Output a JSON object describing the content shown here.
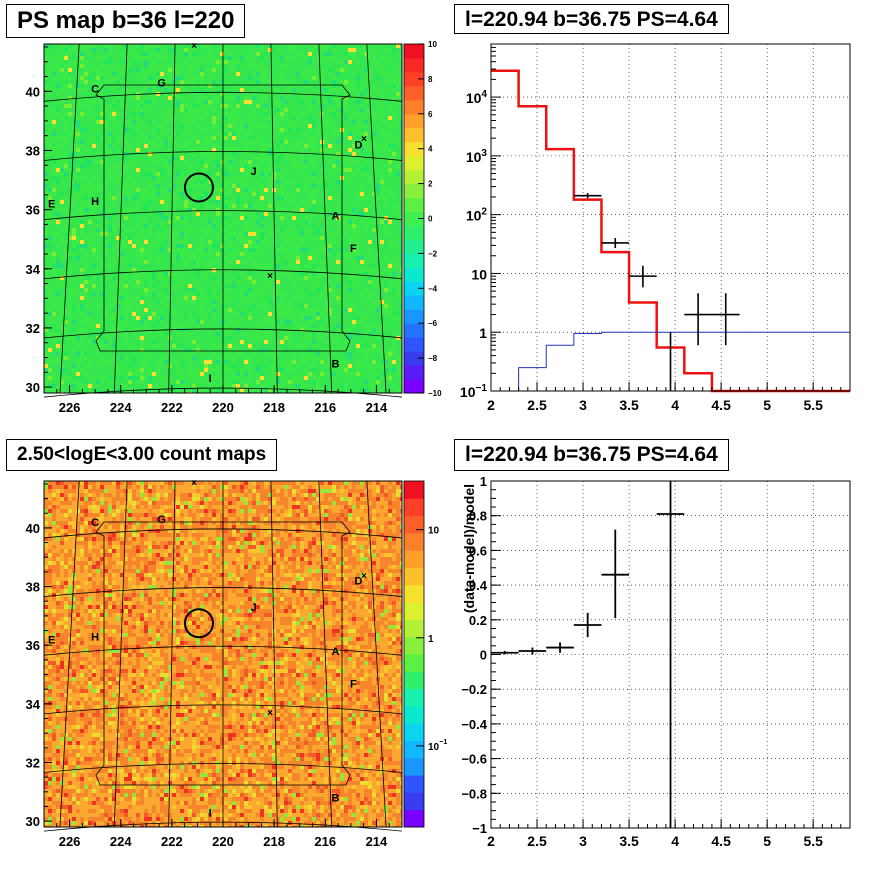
{
  "panels": {
    "tl_title": "PS map b=36 l=220",
    "tr_title": "l=220.94 b=36.75 PS=4.64",
    "bl_title": "2.50<logE<3.00 count maps",
    "br_title": "l=220.94 b=36.75 PS=4.64"
  },
  "colors": {
    "map_top_bg": "#33ee44",
    "map_bottom_bg": "#ee9933",
    "model_line": "#ee1111",
    "bg_line": "#2233bb",
    "data_marker": "#000000"
  },
  "chart_data": [
    {
      "type": "heatmap",
      "name": "ps-map",
      "xlabel": "",
      "ylabel": "",
      "xlim": [
        227,
        213
      ],
      "ylim": [
        29.8,
        41.6
      ],
      "xticks": [
        "226",
        "224",
        "222",
        "220",
        "218",
        "216",
        "214"
      ],
      "yticks": [
        "30",
        "32",
        "34",
        "36",
        "38",
        "40"
      ],
      "colorbar": {
        "scale": "linear",
        "min": -10,
        "max": 10,
        "ticks": [
          "10",
          "8",
          "6",
          "4",
          "2",
          "0",
          "−2",
          "−4",
          "−6",
          "−8",
          "−10"
        ]
      },
      "source_labels": [
        {
          "text": "C",
          "l": 225.0,
          "b": 40.1
        },
        {
          "text": "G",
          "l": 222.4,
          "b": 40.3
        },
        {
          "text": "D",
          "l": 214.7,
          "b": 38.2
        },
        {
          "text": "J",
          "l": 218.8,
          "b": 37.3
        },
        {
          "text": "E",
          "l": 226.7,
          "b": 36.2
        },
        {
          "text": "H",
          "l": 225.0,
          "b": 36.3
        },
        {
          "text": "A",
          "l": 215.6,
          "b": 35.8
        },
        {
          "text": "F",
          "l": 214.9,
          "b": 34.7
        },
        {
          "text": "B",
          "l": 215.6,
          "b": 30.8
        },
        {
          "text": "I",
          "l": 220.5,
          "b": 30.3
        }
      ],
      "circle_center": {
        "l": 220.94,
        "b": 36.75
      }
    },
    {
      "type": "line",
      "name": "spectrum",
      "title": "l=220.94 b=36.75 PS=4.64",
      "xlabel": "",
      "ylabel": "",
      "yscale": "log",
      "xlim": [
        2,
        5.9
      ],
      "ylim": [
        0.1,
        80000
      ],
      "xticks": [
        "2",
        "2.5",
        "3",
        "3.5",
        "4",
        "4.5",
        "5",
        "5.5"
      ],
      "yticks": [
        {
          "v": 0.1,
          "base": "10",
          "exp": "−1"
        },
        {
          "v": 1,
          "base": "1",
          "exp": ""
        },
        {
          "v": 10,
          "base": "10",
          "exp": ""
        },
        {
          "v": 100,
          "base": "10",
          "exp": "2"
        },
        {
          "v": 1000,
          "base": "10",
          "exp": "3"
        },
        {
          "v": 10000,
          "base": "10",
          "exp": "4"
        }
      ],
      "grid": true,
      "bin_edges": [
        2.0,
        2.3,
        2.6,
        2.9,
        3.2,
        3.5,
        3.8,
        4.1,
        4.4,
        4.7,
        5.0,
        5.3,
        5.6,
        5.9
      ],
      "series": [
        {
          "values": [
            28000,
            7000,
            1300,
            180,
            23,
            3.2,
            0.55,
            0.2,
            0.1,
            0.1,
            0.1,
            0.1,
            0.1
          ]
        },
        {
          "values": [
            0.05,
            0.25,
            0.6,
            0.95,
            1.0,
            1.0,
            1.0,
            1.0,
            1.0,
            1.0,
            1.0,
            1.0,
            1.0
          ]
        }
      ],
      "points": [
        {
          "x": 3.05,
          "y": 210,
          "xerr": 0.15,
          "lo": 190,
          "hi": 232
        },
        {
          "x": 3.35,
          "y": 33,
          "xerr": 0.15,
          "lo": 27,
          "hi": 40
        },
        {
          "x": 3.65,
          "y": 9,
          "xerr": 0.15,
          "lo": 5.8,
          "hi": 13.5
        },
        {
          "x": 3.95,
          "y": 0.1,
          "xerr": 0.0,
          "lo": 0.1,
          "hi": 1.0
        },
        {
          "x": 4.25,
          "y": 2,
          "xerr": 0.15,
          "lo": 0.6,
          "hi": 4.6
        },
        {
          "x": 4.55,
          "y": 2,
          "xerr": 0.15,
          "lo": 0.6,
          "hi": 4.6
        }
      ]
    },
    {
      "type": "heatmap",
      "name": "count-map",
      "title": "2.50<logE<3.00 count maps",
      "xlabel": "",
      "ylabel": "",
      "xlim": [
        227,
        213
      ],
      "ylim": [
        29.8,
        41.6
      ],
      "xticks": [
        "226",
        "224",
        "222",
        "220",
        "218",
        "216",
        "214"
      ],
      "yticks": [
        "30",
        "32",
        "34",
        "36",
        "38",
        "40"
      ],
      "colorbar": {
        "scale": "log",
        "ticks": [
          {
            "v": 10,
            "base": "10",
            "exp": ""
          },
          {
            "v": 1,
            "base": "1",
            "exp": ""
          },
          {
            "v": 0.1,
            "base": "10",
            "exp": "−1"
          }
        ]
      },
      "source_labels": [
        {
          "text": "C",
          "l": 225.0,
          "b": 40.2
        },
        {
          "text": "G",
          "l": 222.4,
          "b": 40.3
        },
        {
          "text": "D",
          "l": 214.7,
          "b": 38.2
        },
        {
          "text": "J",
          "l": 218.8,
          "b": 37.3
        },
        {
          "text": "E",
          "l": 226.7,
          "b": 36.2
        },
        {
          "text": "H",
          "l": 225.0,
          "b": 36.3
        },
        {
          "text": "A",
          "l": 215.6,
          "b": 35.8
        },
        {
          "text": "F",
          "l": 214.9,
          "b": 34.7
        },
        {
          "text": "B",
          "l": 215.6,
          "b": 30.8
        },
        {
          "text": "I",
          "l": 220.5,
          "b": 30.3
        }
      ],
      "circle_center": {
        "l": 220.94,
        "b": 36.75
      }
    },
    {
      "type": "scatter",
      "name": "residuals",
      "title": "l=220.94 b=36.75 PS=4.64",
      "xlabel": "",
      "ylabel": "(data-model)/model",
      "xlim": [
        2,
        5.9
      ],
      "ylim": [
        -1,
        1
      ],
      "xticks": [
        "2",
        "2.5",
        "3",
        "3.5",
        "4",
        "4.5",
        "5",
        "5.5"
      ],
      "yticks": [
        "1",
        "0.8",
        "0.6",
        "0.4",
        "0.2",
        "0",
        "−0.2",
        "−0.4",
        "−0.6",
        "−0.8",
        "−1"
      ],
      "grid": true,
      "points": [
        {
          "x": 2.15,
          "y": 0.01,
          "xerr": 0.15,
          "lo": 0.0,
          "hi": 0.02
        },
        {
          "x": 2.45,
          "y": 0.02,
          "xerr": 0.15,
          "lo": 0.0,
          "hi": 0.04
        },
        {
          "x": 2.75,
          "y": 0.04,
          "xerr": 0.15,
          "lo": 0.01,
          "hi": 0.07
        },
        {
          "x": 3.05,
          "y": 0.17,
          "xerr": 0.15,
          "lo": 0.1,
          "hi": 0.24
        },
        {
          "x": 3.35,
          "y": 0.46,
          "xerr": 0.15,
          "lo": 0.21,
          "hi": 0.72
        },
        {
          "x": 3.95,
          "y": 0.81,
          "xerr": 0.15,
          "lo": -1.0,
          "hi": 1.0
        }
      ]
    }
  ]
}
